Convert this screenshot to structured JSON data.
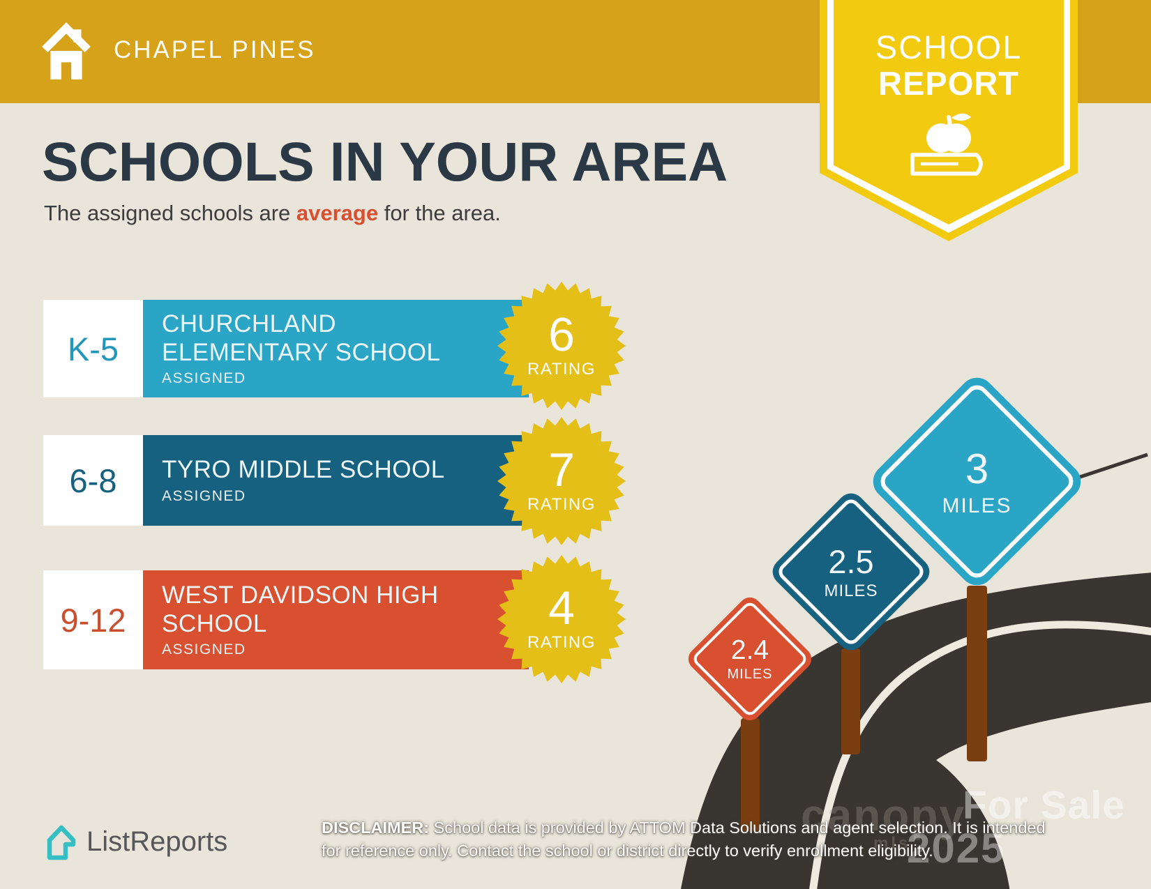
{
  "header": {
    "community": "CHAPEL PINES"
  },
  "ribbon": {
    "line1": "SCHOOL",
    "line2": "REPORT"
  },
  "title": "SCHOOLS IN YOUR AREA",
  "subtitle": {
    "prefix": "The assigned schools are ",
    "highlight": "average",
    "suffix": " for the area."
  },
  "schools": [
    {
      "grades": "K-5",
      "name": "CHURCHLAND\nELEMENTARY SCHOOL",
      "status": "ASSIGNED",
      "rating": "6",
      "rating_label": "RATING",
      "bar_color": "#2BA5C6",
      "grade_color": "#2396BB"
    },
    {
      "grades": "6-8",
      "name": "TYRO MIDDLE SCHOOL",
      "status": "ASSIGNED",
      "rating": "7",
      "rating_label": "RATING",
      "bar_color": "#16617F",
      "grade_color": "#16617F"
    },
    {
      "grades": "9-12",
      "name": "WEST DAVIDSON HIGH\nSCHOOL",
      "status": "ASSIGNED",
      "rating": "4",
      "rating_label": "RATING",
      "bar_color": "#D8502F",
      "grade_color": "#C94E2D"
    }
  ],
  "signs": [
    {
      "distance": "2.4",
      "unit": "MILES",
      "color": "#D8502F"
    },
    {
      "distance": "2.5",
      "unit": "MILES",
      "color": "#16617F"
    },
    {
      "distance": "3",
      "unit": "MILES",
      "color": "#2BA5C6"
    }
  ],
  "watermarks": {
    "line1": "For Sale",
    "line2": "2025",
    "mls_name": "canopy",
    "mls_sub": "mls"
  },
  "footer": {
    "brand": "ListReports",
    "disclaimer_label": "DISCLAIMER:",
    "disclaimer_line1_rest": " School data is provided by ATTOM Data Solutions and agent selection. It is intended",
    "disclaimer_line2": "for reference only. Contact the school or district directly to verify enrollment eligibility."
  },
  "colors": {
    "header_gold": "#D5A21A",
    "ribbon_yellow": "#F2CB10",
    "badge_yellow": "#E4BF17",
    "background_cream": "#E9E5DA",
    "teal": "#2BA5C6",
    "dark_blue": "#16617F",
    "orange": "#D8502F",
    "navy_title": "#2B3947",
    "road": "#393531",
    "road_line": "#EFEAE0",
    "post_brown": "#7A3E10",
    "logo_teal": "#35BFC4",
    "logo_gray": "#57575A"
  }
}
